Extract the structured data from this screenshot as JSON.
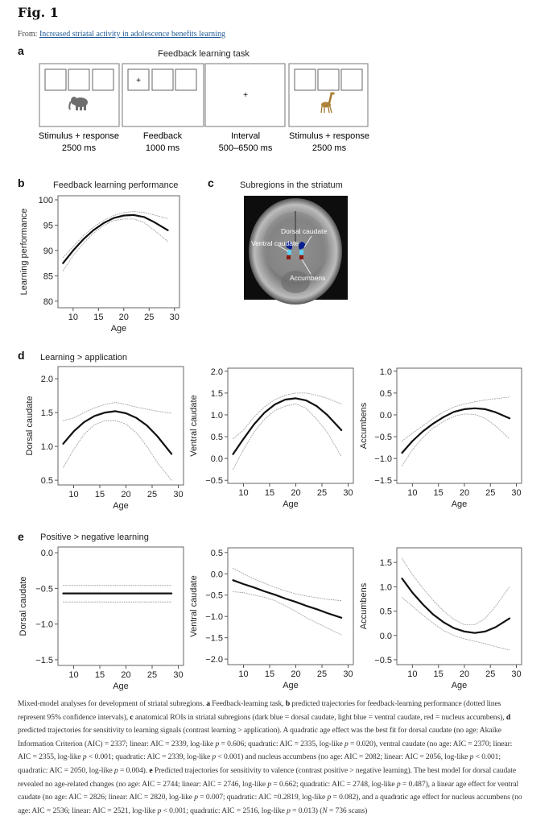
{
  "header": {
    "figure_label": "Fig. 1",
    "from_prefix": "From: ",
    "article_link": "Increased striatal activity in adolescence benefits learning"
  },
  "panel_a": {
    "letter": "a",
    "title": "Feedback learning task",
    "screens": [
      {
        "label": "Stimulus + response",
        "duration": "2500 ms",
        "stimulus": "elephant-icon",
        "fixation": ""
      },
      {
        "label": "Feedback",
        "duration": "1000 ms",
        "stimulus": "",
        "fixation": "+"
      },
      {
        "label": "Interval",
        "duration": "500–6500 ms",
        "stimulus": "",
        "fixation": "+"
      },
      {
        "label": "Stimulus + response",
        "duration": "2500 ms",
        "stimulus": "giraffe-icon",
        "fixation": ""
      }
    ]
  },
  "panel_b": {
    "letter": "b",
    "title": "Feedback learning performance"
  },
  "panel_c": {
    "letter": "c",
    "title": "Subregions in the striatum",
    "labels": {
      "dorsal": "Dorsal caudate",
      "ventral": "Ventral caudate",
      "accumbens": "Accumbens"
    },
    "colors": {
      "dorsal": "#0a1f8f",
      "ventral": "#5fd0f0",
      "accumbens": "#8a1a12"
    }
  },
  "panel_d": {
    "letter": "d",
    "title": "Learning > application"
  },
  "panel_e": {
    "letter": "e",
    "title": "Positive > negative learning"
  },
  "chart_data": [
    {
      "type": "line",
      "panel": "b",
      "xlabel": "Age",
      "ylabel": "Learning performance",
      "xlim": [
        7,
        31
      ],
      "ylim": [
        78.7,
        100.8
      ],
      "xticks": [
        10,
        15,
        20,
        25,
        30
      ],
      "yticks": [
        {
          "v": 80,
          "label": "80"
        },
        {
          "v": 85,
          "label": "85"
        },
        {
          "v": 90,
          "label": "90"
        },
        {
          "v": 95,
          "label": "95"
        },
        {
          "v": 100,
          "label": "100"
        }
      ],
      "x": [
        8,
        10,
        12,
        14,
        16,
        18,
        20,
        22,
        24,
        26,
        28.7
      ],
      "series": [
        {
          "role": "fit",
          "values": [
            87.5,
            90,
            92.2,
            94,
            95.4,
            96.4,
            96.9,
            97,
            96.6,
            95.6,
            94
          ]
        },
        {
          "role": "ci_upper",
          "values": [
            88.6,
            90.8,
            92.9,
            94.6,
            95.9,
            96.9,
            97.5,
            97.7,
            97.5,
            97,
            96.3
          ]
        },
        {
          "role": "ci_lower",
          "values": [
            86,
            89,
            91.4,
            93.4,
            94.9,
            95.9,
            96.2,
            96.2,
            95.5,
            94,
            91.8
          ]
        }
      ]
    },
    {
      "type": "line",
      "panel": "d",
      "xlabel": "Age",
      "ylabel": "Dorsal caudate",
      "xlim": [
        7,
        31
      ],
      "ylim": [
        0.43,
        2.18
      ],
      "xticks": [
        10,
        15,
        20,
        25,
        30
      ],
      "yticks": [
        {
          "v": 0.5,
          "label": "0.5"
        },
        {
          "v": 1.0,
          "label": "1.0"
        },
        {
          "v": 1.5,
          "label": "1.5"
        },
        {
          "v": 2.0,
          "label": "2.0"
        }
      ],
      "x": [
        8,
        10,
        12,
        14,
        16,
        18,
        20,
        22,
        24,
        26,
        28.7
      ],
      "series": [
        {
          "role": "fit",
          "values": [
            1.04,
            1.22,
            1.36,
            1.45,
            1.5,
            1.52,
            1.49,
            1.42,
            1.31,
            1.15,
            0.89
          ]
        },
        {
          "role": "ci_upper",
          "values": [
            1.38,
            1.42,
            1.5,
            1.57,
            1.62,
            1.65,
            1.62,
            1.58,
            1.55,
            1.52,
            1.49
          ]
        },
        {
          "role": "ci_lower",
          "values": [
            0.69,
            0.95,
            1.18,
            1.32,
            1.38,
            1.38,
            1.33,
            1.2,
            1.0,
            0.76,
            0.5
          ]
        }
      ]
    },
    {
      "type": "line",
      "panel": "d",
      "xlabel": "Age",
      "ylabel": "Ventral caudate",
      "xlim": [
        7,
        31
      ],
      "ylim": [
        -0.57,
        2.07
      ],
      "xticks": [
        10,
        15,
        20,
        25,
        30
      ],
      "yticks": [
        {
          "v": -0.5,
          "label": "−0.5"
        },
        {
          "v": 0,
          "label": "0.0"
        },
        {
          "v": 0.5,
          "label": "0.5"
        },
        {
          "v": 1.0,
          "label": "1.0"
        },
        {
          "v": 1.5,
          "label": "1.5"
        },
        {
          "v": 2.0,
          "label": "2.0"
        }
      ],
      "x": [
        8,
        10,
        12,
        14,
        16,
        18,
        20,
        22,
        24,
        26,
        28.7
      ],
      "series": [
        {
          "role": "fit",
          "values": [
            0.1,
            0.45,
            0.78,
            1.05,
            1.24,
            1.35,
            1.38,
            1.33,
            1.2,
            1.0,
            0.65
          ]
        },
        {
          "role": "ci_upper",
          "values": [
            0.45,
            0.65,
            0.95,
            1.18,
            1.35,
            1.45,
            1.5,
            1.5,
            1.45,
            1.38,
            1.25
          ]
        },
        {
          "role": "ci_lower",
          "values": [
            -0.25,
            0.2,
            0.6,
            0.9,
            1.1,
            1.2,
            1.25,
            1.15,
            0.9,
            0.6,
            0.05
          ]
        }
      ]
    },
    {
      "type": "line",
      "panel": "d",
      "xlabel": "Age",
      "ylabel": "Accumbens",
      "xlim": [
        7,
        31
      ],
      "ylim": [
        -1.57,
        1.07
      ],
      "xticks": [
        10,
        15,
        20,
        25,
        30
      ],
      "yticks": [
        {
          "v": -1.5,
          "label": "−1.5"
        },
        {
          "v": -1.0,
          "label": "−1.0"
        },
        {
          "v": -0.5,
          "label": "−0.5"
        },
        {
          "v": 0,
          "label": "0.0"
        },
        {
          "v": 0.5,
          "label": "0.5"
        },
        {
          "v": 1.0,
          "label": "1.0"
        }
      ],
      "x": [
        8,
        10,
        12,
        14,
        16,
        18,
        20,
        22,
        24,
        26,
        28.7
      ],
      "series": [
        {
          "role": "fit",
          "values": [
            -0.87,
            -0.6,
            -0.38,
            -0.2,
            -0.05,
            0.07,
            0.13,
            0.15,
            0.13,
            0.06,
            -0.08
          ]
        },
        {
          "role": "ci_upper",
          "values": [
            -0.6,
            -0.42,
            -0.25,
            -0.08,
            0.07,
            0.18,
            0.25,
            0.3,
            0.34,
            0.37,
            0.41
          ]
        },
        {
          "role": "ci_lower",
          "values": [
            -1.17,
            -0.8,
            -0.52,
            -0.3,
            -0.15,
            -0.03,
            0.02,
            0.01,
            -0.08,
            -0.25,
            -0.55
          ]
        }
      ]
    },
    {
      "type": "line",
      "panel": "e",
      "xlabel": "Age",
      "ylabel": "Dorsal caudate",
      "xlim": [
        7,
        31
      ],
      "ylim": [
        -1.58,
        0.08
      ],
      "xticks": [
        10,
        15,
        20,
        25,
        30
      ],
      "yticks": [
        {
          "v": -1.5,
          "label": "−1.5"
        },
        {
          "v": -1.0,
          "label": "−1.0"
        },
        {
          "v": -0.5,
          "label": "−0.5"
        },
        {
          "v": 0,
          "label": "0.0"
        }
      ],
      "x": [
        8,
        28.7
      ],
      "series": [
        {
          "role": "fit",
          "values": [
            -0.57,
            -0.57
          ]
        },
        {
          "role": "ci_upper",
          "values": [
            -0.46,
            -0.46
          ]
        },
        {
          "role": "ci_lower",
          "values": [
            -0.69,
            -0.69
          ]
        }
      ]
    },
    {
      "type": "line",
      "panel": "e",
      "xlabel": "Age",
      "ylabel": "Ventral caudate",
      "xlim": [
        7,
        31
      ],
      "ylim": [
        -2.13,
        0.61
      ],
      "xticks": [
        10,
        15,
        20,
        25,
        30
      ],
      "yticks": [
        {
          "v": -2.0,
          "label": "−2.0"
        },
        {
          "v": -1.5,
          "label": "−1.5"
        },
        {
          "v": -1.0,
          "label": "−1.0"
        },
        {
          "v": -0.5,
          "label": "−0.5"
        },
        {
          "v": 0,
          "label": "0.0"
        },
        {
          "v": 0.5,
          "label": "0.5"
        }
      ],
      "x": [
        8,
        10,
        12,
        14,
        16,
        18,
        20,
        22,
        24,
        26,
        28.7
      ],
      "series": [
        {
          "role": "fit",
          "values": [
            -0.15,
            -0.24,
            -0.32,
            -0.41,
            -0.49,
            -0.58,
            -0.66,
            -0.75,
            -0.83,
            -0.92,
            -1.03
          ]
        },
        {
          "role": "ci_upper",
          "values": [
            0.13,
            0.0,
            -0.12,
            -0.22,
            -0.32,
            -0.4,
            -0.47,
            -0.52,
            -0.56,
            -0.6,
            -0.63
          ]
        },
        {
          "role": "ci_lower",
          "values": [
            -0.42,
            -0.44,
            -0.5,
            -0.55,
            -0.63,
            -0.75,
            -0.88,
            -1.03,
            -1.15,
            -1.27,
            -1.43
          ]
        }
      ]
    },
    {
      "type": "line",
      "panel": "e",
      "xlabel": "Age",
      "ylabel": "Accumbens",
      "xlim": [
        7,
        31
      ],
      "ylim": [
        -0.6,
        1.8
      ],
      "xticks": [
        10,
        15,
        20,
        25,
        30
      ],
      "yticks": [
        {
          "v": -0.5,
          "label": "−0.5"
        },
        {
          "v": 0,
          "label": "0.0"
        },
        {
          "v": 0.5,
          "label": "0.5"
        },
        {
          "v": 1.0,
          "label": "1.0"
        },
        {
          "v": 1.5,
          "label": "1.5"
        }
      ],
      "x": [
        8,
        10,
        12,
        14,
        16,
        18,
        20,
        22,
        24,
        26,
        28.7
      ],
      "series": [
        {
          "role": "fit",
          "values": [
            1.17,
            0.88,
            0.64,
            0.43,
            0.27,
            0.15,
            0.08,
            0.05,
            0.08,
            0.17,
            0.35
          ]
        },
        {
          "role": "ci_upper",
          "values": [
            1.58,
            1.25,
            0.97,
            0.72,
            0.5,
            0.33,
            0.22,
            0.22,
            0.35,
            0.6,
            1.0
          ]
        },
        {
          "role": "ci_lower",
          "values": [
            0.78,
            0.6,
            0.42,
            0.25,
            0.1,
            0.0,
            -0.07,
            -0.12,
            -0.17,
            -0.23,
            -0.3
          ]
        }
      ]
    }
  ],
  "caption": {
    "segments": [
      {
        "t": "Mixed-model analyses for development of striatal subregions. "
      },
      {
        "t": "a",
        "s": "b"
      },
      {
        "t": " Feedback-learning task, "
      },
      {
        "t": "b",
        "s": "b"
      },
      {
        "t": " predicted trajectories for feedback-learning performance (dotted lines represent 95% confidence intervals), "
      },
      {
        "t": "c",
        "s": "b"
      },
      {
        "t": " anatomical ROIs in striatal subregions (dark blue = dorsal caudate, light blue = ventral caudate, red = nucleus accumbens), "
      },
      {
        "t": "d",
        "s": "b"
      },
      {
        "t": " predicted trajectories for sensitivity to learning signals (contrast learning > application). A quadratic age effect was the best fit for dorsal caudate (no age: Akaike Information Criterion (AIC) = 2337; linear: AIC = 2339, log-like "
      },
      {
        "t": "p",
        "s": "i"
      },
      {
        "t": " = 0.606; quadratic: AIC = 2335, log-like "
      },
      {
        "t": "p",
        "s": "i"
      },
      {
        "t": " = 0.020), ventral caudate (no age: AIC = 2370; linear: AIC = 2355, log-like "
      },
      {
        "t": "p",
        "s": "i"
      },
      {
        "t": " < 0.001; quadratic: AIC = 2339, log-like "
      },
      {
        "t": "p",
        "s": "i"
      },
      {
        "t": " < 0.001) and nucleus accumbens (no age: AIC = 2082; linear: AIC = 2056, log-like "
      },
      {
        "t": "p",
        "s": "i"
      },
      {
        "t": " < 0.001; quadratic: AIC = 2050, log-like "
      },
      {
        "t": "p",
        "s": "i"
      },
      {
        "t": " = 0.004). "
      },
      {
        "t": "e",
        "s": "b"
      },
      {
        "t": " Predicted trajectories for sensitivity to valence (contrast positive > negative learning). The best model for dorsal caudate revealed no age-related changes (no age: AIC = 2744; linear: AIC = 2746, log-like "
      },
      {
        "t": "p",
        "s": "i"
      },
      {
        "t": " = 0.662; quadratic: AIC = 2748, log-like "
      },
      {
        "t": "p",
        "s": "i"
      },
      {
        "t": " = 0.487), a linear age effect for ventral caudate (no age: AIC = 2826; linear: AIC = 2820, log-like "
      },
      {
        "t": "p",
        "s": "i"
      },
      {
        "t": " = 0.007; quadratic: AIC =0.2819, log-like "
      },
      {
        "t": "p",
        "s": "i"
      },
      {
        "t": " = 0.082), and a quadratic age effect for nucleus accumbens (no age: AIC = 2536; linear: AIC = 2521, log-like "
      },
      {
        "t": "p",
        "s": "i"
      },
      {
        "t": " < 0.001; quadratic: AIC = 2516, log-like "
      },
      {
        "t": "p",
        "s": "i"
      },
      {
        "t": " = 0.013) ("
      },
      {
        "t": "N",
        "s": "i"
      },
      {
        "t": " = 736 scans)"
      }
    ]
  }
}
